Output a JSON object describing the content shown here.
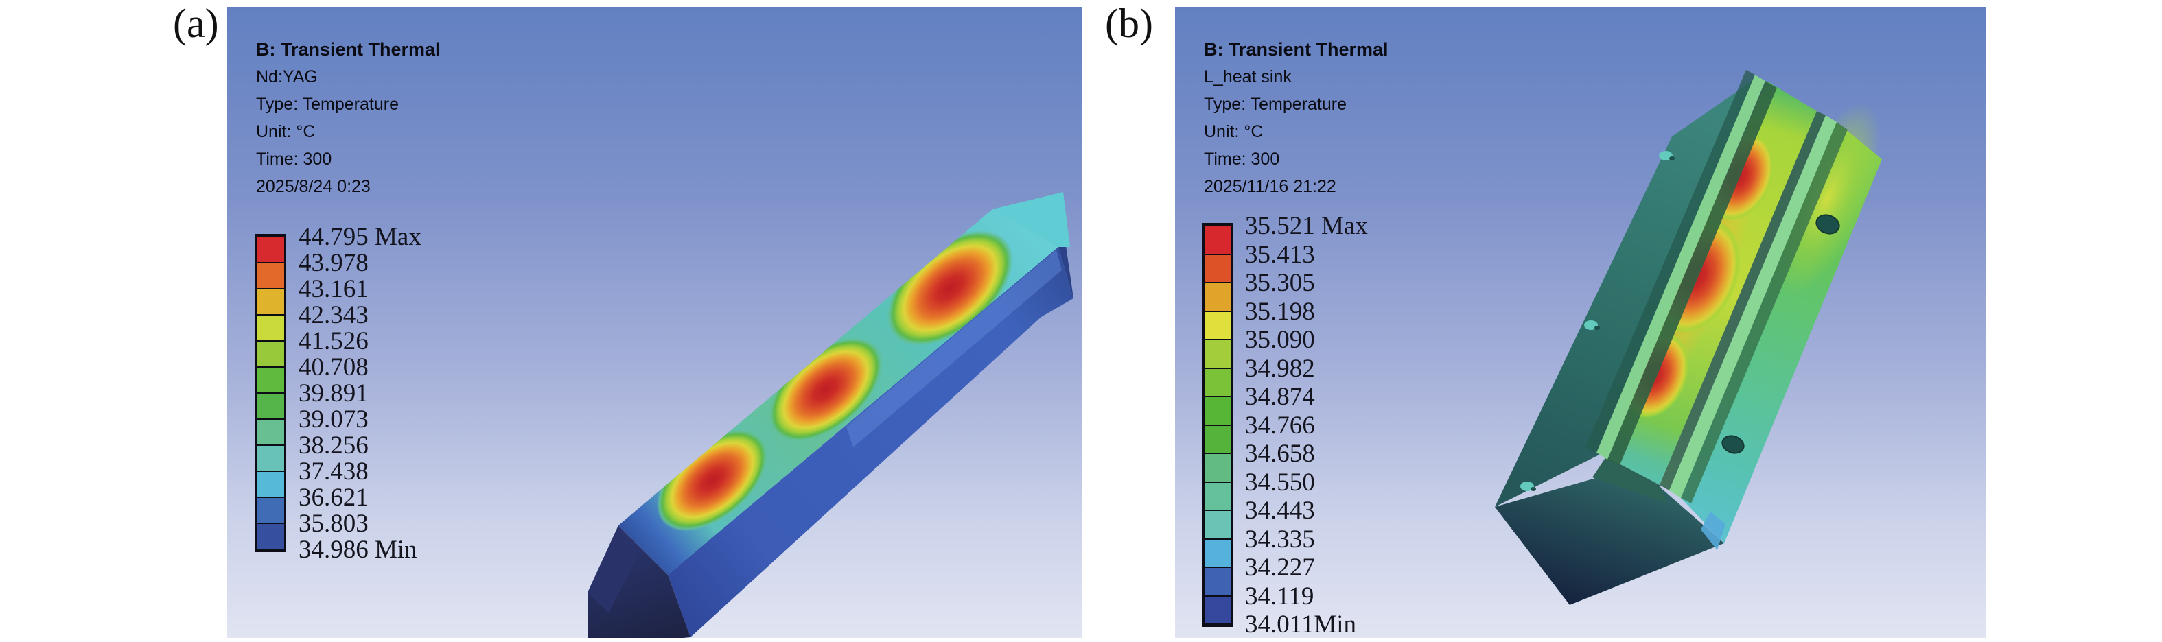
{
  "panels": [
    {
      "id": "a",
      "label": "(a)",
      "header": {
        "title": "B: Transient Thermal",
        "lines": [
          "Nd:YAG",
          "Type: Temperature",
          "Unit: °C",
          "Time: 300",
          "2025/8/24 0:23"
        ]
      },
      "legend": {
        "labels": [
          "44.795 Max",
          "43.978",
          "43.161",
          "42.343",
          "41.526",
          "40.708",
          "39.891",
          "39.073",
          "38.256",
          "37.438",
          "36.621",
          "35.803",
          "34.986 Min"
        ],
        "colors": [
          "#d62a2e",
          "#e2692a",
          "#dfb32b",
          "#cada3a",
          "#97c93b",
          "#5fba3d",
          "#55b44a",
          "#68bf92",
          "#68c2b8",
          "#55b9d7",
          "#3f6cb4",
          "#36509f"
        ]
      }
    },
    {
      "id": "b",
      "label": "(b)",
      "header": {
        "title": "B: Transient Thermal",
        "lines": [
          "L_heat sink",
          "Type: Temperature",
          "Unit: °C",
          "Time: 300",
          "2025/11/16 21:22"
        ]
      },
      "legend": {
        "labels": [
          "35.521 Max",
          "35.413",
          "35.305",
          "35.198",
          "35.090",
          "34.982",
          "34.874",
          "34.766",
          "34.658",
          "34.550",
          "34.443",
          "34.335",
          "34.227",
          "34.119",
          "34.011Min"
        ],
        "colors": [
          "#d6282d",
          "#dd5226",
          "#e0a42a",
          "#dfe03c",
          "#a3cd3b",
          "#7cc238",
          "#58b637",
          "#55b33b",
          "#62bb80",
          "#65c09c",
          "#6bc3b6",
          "#54b2dd",
          "#3f63b2",
          "#36479e"
        ]
      }
    }
  ],
  "background": {
    "viewport_top": "#6280c1",
    "viewport_bottom": "#e1e4f2",
    "page": "#ffffff"
  },
  "chart_data": [
    {
      "type": "heatmap",
      "subfigure": "(a)",
      "title": "B: Transient Thermal",
      "series_name": "Nd:YAG",
      "quantity": "Temperature",
      "unit": "°C",
      "time": "300",
      "timestamp": "2025/8/24 0:23",
      "max": 44.795,
      "min": 34.986,
      "legend_levels": [
        44.795,
        43.978,
        43.161,
        42.343,
        41.526,
        40.708,
        39.891,
        39.073,
        38.256,
        37.438,
        36.621,
        35.803,
        34.986
      ],
      "color_bands": 12,
      "legend_position": "left",
      "annotations": [
        "three elliptical hot spots (max red) along the top face of an elongated crystal bar",
        "bar body mostly blue (~35-37 °C)",
        "dark navy chamfered end at lower-left",
        "teal end cap at upper-right"
      ]
    },
    {
      "type": "heatmap",
      "subfigure": "(b)",
      "title": "B: Transient Thermal",
      "series_name": "L_heat sink",
      "quantity": "Temperature",
      "unit": "°C",
      "time": "300",
      "timestamp": "2025/11/16 21:22",
      "max": 35.521,
      "min": 34.011,
      "legend_levels": [
        35.521,
        35.413,
        35.305,
        35.198,
        35.09,
        34.982,
        34.874,
        34.766,
        34.658,
        34.55,
        34.443,
        34.335,
        34.227,
        34.119,
        34.011
      ],
      "color_bands": 14,
      "legend_position": "left",
      "annotations": [
        "three red hot spots inside the central channel of the heat-sink block",
        "two raised rails flank the channel",
        "bolt holes on the green side face",
        "dark teal top face and dark navy bottom face"
      ]
    }
  ]
}
